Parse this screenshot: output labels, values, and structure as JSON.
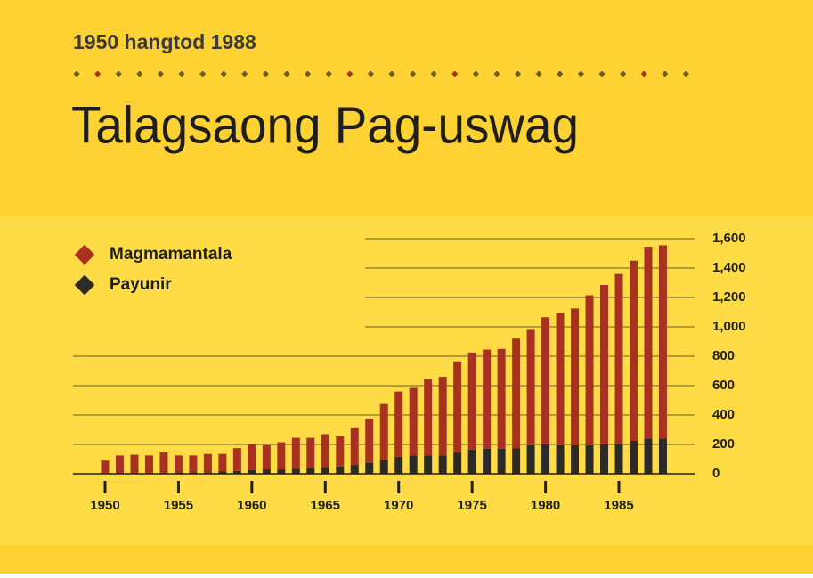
{
  "chart_data": {
    "type": "stacked_bar",
    "subtitle": "1950 hangtod 1988",
    "title": "Talagsaong Pag-uswag",
    "x": [
      1950,
      1951,
      1952,
      1953,
      1954,
      1955,
      1956,
      1957,
      1958,
      1959,
      1960,
      1961,
      1962,
      1963,
      1964,
      1965,
      1966,
      1967,
      1968,
      1969,
      1970,
      1971,
      1972,
      1973,
      1974,
      1975,
      1976,
      1977,
      1978,
      1979,
      1980,
      1981,
      1982,
      1983,
      1984,
      1985,
      1986,
      1987,
      1988
    ],
    "series": [
      {
        "name": "Payunir",
        "color": "#2b2a26",
        "values": [
          5,
          5,
          5,
          5,
          5,
          10,
          10,
          10,
          15,
          20,
          25,
          30,
          30,
          35,
          40,
          45,
          50,
          60,
          75,
          95,
          115,
          125,
          125,
          125,
          145,
          165,
          170,
          170,
          175,
          195,
          200,
          195,
          195,
          195,
          200,
          205,
          225,
          240,
          240
        ]
      },
      {
        "name": "Magmamantala",
        "color": "#a8321f",
        "values": [
          85,
          120,
          125,
          120,
          140,
          115,
          115,
          125,
          120,
          155,
          175,
          165,
          185,
          210,
          205,
          225,
          205,
          250,
          300,
          380,
          445,
          460,
          520,
          535,
          620,
          660,
          675,
          680,
          745,
          790,
          865,
          900,
          930,
          1020,
          1085,
          1155,
          1225,
          1305,
          1315
        ]
      }
    ],
    "xlim": [
      1947.8,
      1990
    ],
    "xticks": [
      1950,
      1955,
      1960,
      1965,
      1970,
      1975,
      1980,
      1985
    ],
    "ylim": [
      0,
      1600
    ],
    "yticks": [
      0,
      {
        "value": 200,
        "label": "200"
      },
      400,
      600,
      800,
      {
        "value": 1000,
        "label": "1,000"
      },
      {
        "value": 1200,
        "label": "1,200"
      },
      {
        "value": 1400,
        "label": "1,400"
      },
      {
        "value": 1600,
        "label": "1,600"
      }
    ],
    "grid": true,
    "legend": "top-left"
  }
}
